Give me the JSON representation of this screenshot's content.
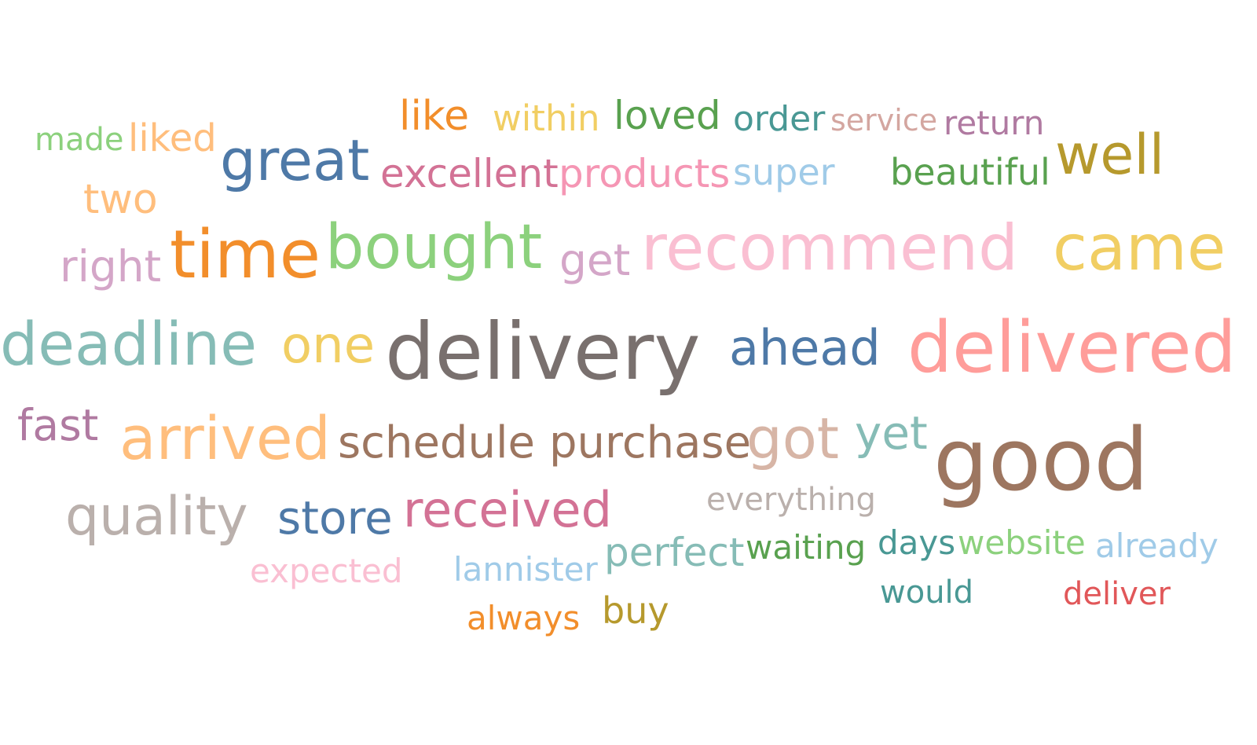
{
  "chart_data": {
    "type": "wordcloud",
    "words": [
      {
        "text": "made",
        "color": "#8cd17d"
      },
      {
        "text": "liked",
        "color": "#ffbe7d"
      },
      {
        "text": "like",
        "color": "#f28e2b"
      },
      {
        "text": "within",
        "color": "#f1ce63"
      },
      {
        "text": "loved",
        "color": "#59a14f"
      },
      {
        "text": "order",
        "color": "#499894"
      },
      {
        "text": "service",
        "color": "#d4a6a0"
      },
      {
        "text": "return",
        "color": "#b07aa1"
      },
      {
        "text": "great",
        "color": "#4e79a7"
      },
      {
        "text": "excellent",
        "color": "#d37295"
      },
      {
        "text": "products",
        "color": "#f596b4"
      },
      {
        "text": "super",
        "color": "#a0cbe8"
      },
      {
        "text": "beautiful",
        "color": "#59a14f"
      },
      {
        "text": "well",
        "color": "#b6992d"
      },
      {
        "text": "two",
        "color": "#ffbe7d"
      },
      {
        "text": "right",
        "color": "#d4a6c8"
      },
      {
        "text": "time",
        "color": "#f28e2b"
      },
      {
        "text": "bought",
        "color": "#8cd17d"
      },
      {
        "text": "get",
        "color": "#d4a6c8"
      },
      {
        "text": "recommend",
        "color": "#fabfd2"
      },
      {
        "text": "came",
        "color": "#f1ce63"
      },
      {
        "text": "deadline",
        "color": "#86bcb6"
      },
      {
        "text": "one",
        "color": "#f1ce63"
      },
      {
        "text": "delivery",
        "color": "#79706e"
      },
      {
        "text": "ahead",
        "color": "#4e79a7"
      },
      {
        "text": "delivered",
        "color": "#ff9d9a"
      },
      {
        "text": "fast",
        "color": "#b07aa1"
      },
      {
        "text": "arrived",
        "color": "#ffbe7d"
      },
      {
        "text": "schedule",
        "color": "#9d7660"
      },
      {
        "text": "purchase",
        "color": "#9d7660"
      },
      {
        "text": "got",
        "color": "#d7b5a6"
      },
      {
        "text": "yet",
        "color": "#86bcb6"
      },
      {
        "text": "good",
        "color": "#9d7660"
      },
      {
        "text": "quality",
        "color": "#bab0ac"
      },
      {
        "text": "store",
        "color": "#4e79a7"
      },
      {
        "text": "received",
        "color": "#d37295"
      },
      {
        "text": "everything",
        "color": "#bab0ac"
      },
      {
        "text": "perfect",
        "color": "#86bcb6"
      },
      {
        "text": "waiting",
        "color": "#59a14f"
      },
      {
        "text": "days",
        "color": "#499894"
      },
      {
        "text": "website",
        "color": "#8cd17d"
      },
      {
        "text": "already",
        "color": "#a0cbe8"
      },
      {
        "text": "expected",
        "color": "#fabfd2"
      },
      {
        "text": "lannister",
        "color": "#a0cbe8"
      },
      {
        "text": "would",
        "color": "#499894"
      },
      {
        "text": "deliver",
        "color": "#e15759"
      },
      {
        "text": "always",
        "color": "#f28e2b"
      },
      {
        "text": "buy",
        "color": "#b6992d"
      }
    ]
  }
}
